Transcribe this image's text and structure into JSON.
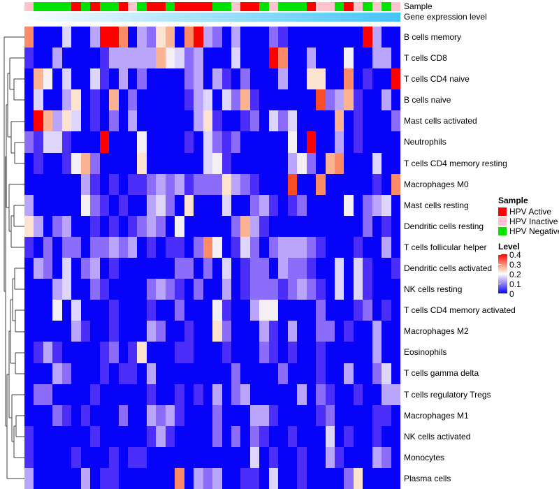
{
  "annotations": {
    "sample_label": "Sample",
    "gene_label": "Gene expression level",
    "gene_gradient": {
      "start": "#fbfdff",
      "end": "#45c4f5"
    }
  },
  "legend": {
    "sample_title": "Sample",
    "sample_items": [
      {
        "label": "HPV Active",
        "color": "#fe0000"
      },
      {
        "label": "HPV Inactive",
        "color": "#ffc3cd"
      },
      {
        "label": "HPV Negative",
        "color": "#01e301"
      }
    ],
    "level_title": "Level",
    "level_ticks": [
      "0.4",
      "0.3",
      "0.2",
      "0.1",
      "0"
    ],
    "level_gradient": [
      "#fe0000",
      "#fc8c73",
      "#ffffff",
      "#9381f7",
      "#0603f8"
    ]
  },
  "chart_data": {
    "type": "heatmap",
    "title": "",
    "columns": 40,
    "value_range": [
      0,
      0.4
    ],
    "rows": [
      "B cells memory",
      "T cells CD8",
      "T cells CD4 naive",
      "B cells naive",
      "Mast cells activated",
      "Neutrophils",
      "T cells CD4 memory resting",
      "Macrophages M0",
      "Mast cells resting",
      "Dendritic cells resting",
      "T cells follicular helper",
      "Dendritic cells activated",
      "NK cells resting",
      "T cells CD4 memory activated",
      "Macrophages M2",
      "Eosinophils",
      "T cells gamma delta",
      "T cells regulatory  Tregs",
      "Macrophages M1",
      "NK cells activated",
      "Monocytes",
      "Plasma cells"
    ],
    "code_values": {
      "0": 0,
      "1": 0.05,
      "2": 0.1,
      "3": 0.13,
      "4": 0.17,
      "5": 0.2,
      "6": 0.24,
      "7": 0.27,
      "8": 0.31,
      "9": 0.35,
      "R": 0.4
    },
    "code_colors": {
      "0": "#0702f8",
      "1": "#4b2ef9",
      "2": "#8c6cfa",
      "3": "#b9a5fc",
      "4": "#ded5fb",
      "5": "#f3eff2",
      "6": "#fbe3cf",
      "7": "#fcb394",
      "8": "#fb8a67",
      "9": "#f94d28",
      "R": "#fe0000"
    },
    "cells": [
      "80004003RR80326708R32030002100000000R300",
      "10030000133333754230004000R8003000500330",
      "075040041030200002303102000300660080100R",
      "0400360107020000013404271000000923710030",
      "0R73640102030000003610012042400007010002",
      "21441000R000500001042120000050R003010000",
      "0100157200006000000451000000352078000400",
      "0000003101011232312226321000900800000108",
      "3000005210100342060004002310120000502340",
      "6302300101012320500000273100000000002010",
      "1020220223230101102850142023332100010030",
      "0320402301000000220204012203221004041001",
      "0003400210000232102003012221232104041000",
      "0005040001000100200051003550000200012010",
      "0000031001000320010062000310300220100300",
      "0131000012016000110001000210100100000300",
      "0003200010110300000000200002000100300240",
      "0220000100000100101030230000030210010033",
      "0002101000200323100020003310000120000110",
      "1000000100000131000020202100100040100100",
      "1000010001011000000000004010010031000320",
      "3000003011000000803230011040010000260000"
    ],
    "column_annotation_sample": "PGGGGRGRGGRPGRRGRRRRGGPRRGPGGGRPPGRPGPGP",
    "annotation_colors": {
      "P": "#ffc3cd",
      "G": "#01e301",
      "R": "#fe0000"
    }
  }
}
